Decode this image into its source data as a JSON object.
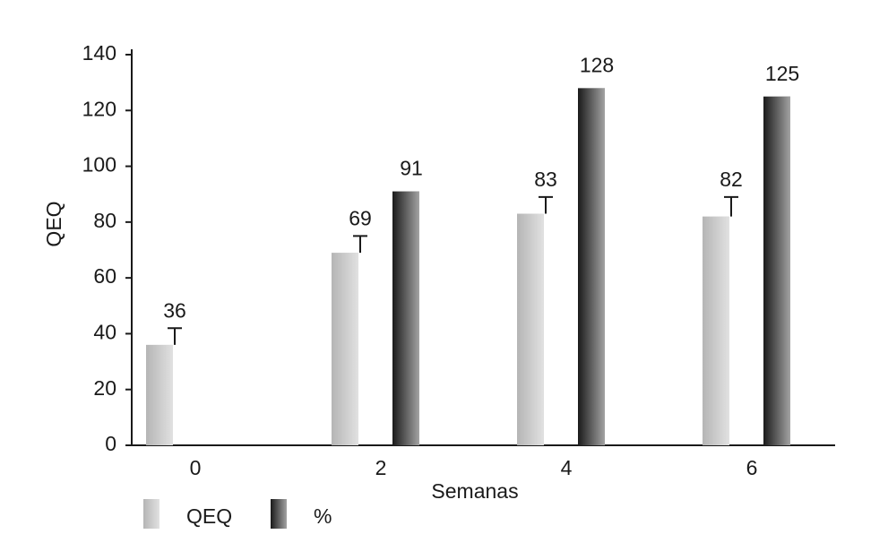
{
  "chart_data": {
    "type": "bar",
    "categories": [
      "0",
      "2",
      "4",
      "6"
    ],
    "x_label": "Semanas",
    "y_label": "QEQ",
    "series": [
      {
        "name": "QEQ",
        "color": "#b5b5b5",
        "values": [
          36,
          69,
          83,
          82
        ],
        "errors": [
          6,
          6,
          6,
          7
        ]
      },
      {
        "name": "%",
        "color": "#1a1a1a",
        "values": [
          null,
          91,
          128,
          125
        ]
      }
    ],
    "ylim": [
      0,
      140
    ],
    "yticks": [
      0,
      20,
      40,
      60,
      80,
      100,
      120,
      140
    ],
    "grid": false,
    "legend": "bottom-left"
  }
}
